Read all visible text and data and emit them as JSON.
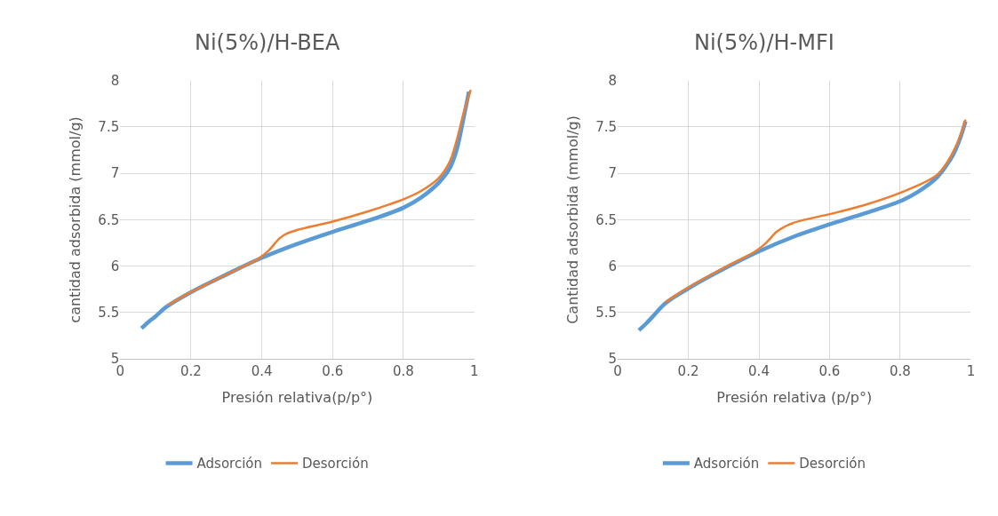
{
  "chart_data": [
    {
      "type": "line",
      "title": "Ni(5%)/H-BEA",
      "xlabel": "Presión relativa(p/p°)",
      "ylabel": "cantidad adsorbida (mmol/g)",
      "xlim": [
        0,
        1
      ],
      "xticks": [
        0,
        0.2,
        0.4,
        0.6,
        0.8,
        1
      ],
      "ylim": [
        5,
        8
      ],
      "yticks": [
        5,
        5.5,
        6,
        6.5,
        7,
        7.5,
        8
      ],
      "grid": true,
      "legend": "bottom",
      "marker": "none",
      "line_style": "solid",
      "series": [
        {
          "name": "Adsorción",
          "color": "#5b9bd5",
          "x": [
            0.06,
            0.08,
            0.1,
            0.13,
            0.2,
            0.3,
            0.4,
            0.5,
            0.6,
            0.7,
            0.8,
            0.85,
            0.9,
            0.93,
            0.95,
            0.97,
            0.985
          ],
          "values": [
            5.33,
            5.4,
            5.46,
            5.56,
            5.72,
            5.91,
            6.09,
            6.24,
            6.37,
            6.49,
            6.63,
            6.74,
            6.9,
            7.05,
            7.25,
            7.6,
            7.88
          ]
        },
        {
          "name": "Desorción",
          "color": "#ed7d31",
          "x": [
            0.135,
            0.2,
            0.3,
            0.39,
            0.42,
            0.45,
            0.47,
            0.5,
            0.6,
            0.7,
            0.8,
            0.85,
            0.9,
            0.93,
            0.95,
            0.97,
            0.99
          ],
          "values": [
            5.58,
            5.72,
            5.91,
            6.08,
            6.17,
            6.3,
            6.35,
            6.39,
            6.48,
            6.59,
            6.72,
            6.81,
            6.95,
            7.12,
            7.35,
            7.65,
            7.9
          ]
        }
      ]
    },
    {
      "type": "line",
      "title": "Ni(5%)/H-MFI",
      "xlabel": "Presión relativa (p/p°)",
      "ylabel": "Cantidad adsorbida (mmol/g)",
      "xlim": [
        0,
        1
      ],
      "xticks": [
        0,
        0.2,
        0.4,
        0.6,
        0.8,
        1
      ],
      "ylim": [
        5,
        8
      ],
      "yticks": [
        5,
        5.5,
        6,
        6.5,
        7,
        7.5,
        8
      ],
      "grid": true,
      "legend": "bottom",
      "marker": "none",
      "line_style": "solid",
      "series": [
        {
          "name": "Adsorción",
          "color": "#5b9bd5",
          "x": [
            0.06,
            0.08,
            0.1,
            0.135,
            0.2,
            0.3,
            0.4,
            0.5,
            0.6,
            0.7,
            0.8,
            0.85,
            0.9,
            0.93,
            0.95,
            0.97,
            0.985
          ],
          "values": [
            5.31,
            5.38,
            5.46,
            5.6,
            5.76,
            5.97,
            6.16,
            6.32,
            6.45,
            6.57,
            6.7,
            6.8,
            6.94,
            7.08,
            7.2,
            7.38,
            7.56
          ]
        },
        {
          "name": "Desorción",
          "color": "#ed7d31",
          "x": [
            0.135,
            0.2,
            0.3,
            0.39,
            0.42,
            0.45,
            0.47,
            0.5,
            0.6,
            0.7,
            0.8,
            0.9,
            0.93,
            0.95,
            0.97,
            0.985
          ],
          "values": [
            5.61,
            5.77,
            5.98,
            6.16,
            6.25,
            6.37,
            6.42,
            6.47,
            6.56,
            6.66,
            6.79,
            6.97,
            7.1,
            7.23,
            7.4,
            7.58
          ]
        }
      ]
    }
  ]
}
